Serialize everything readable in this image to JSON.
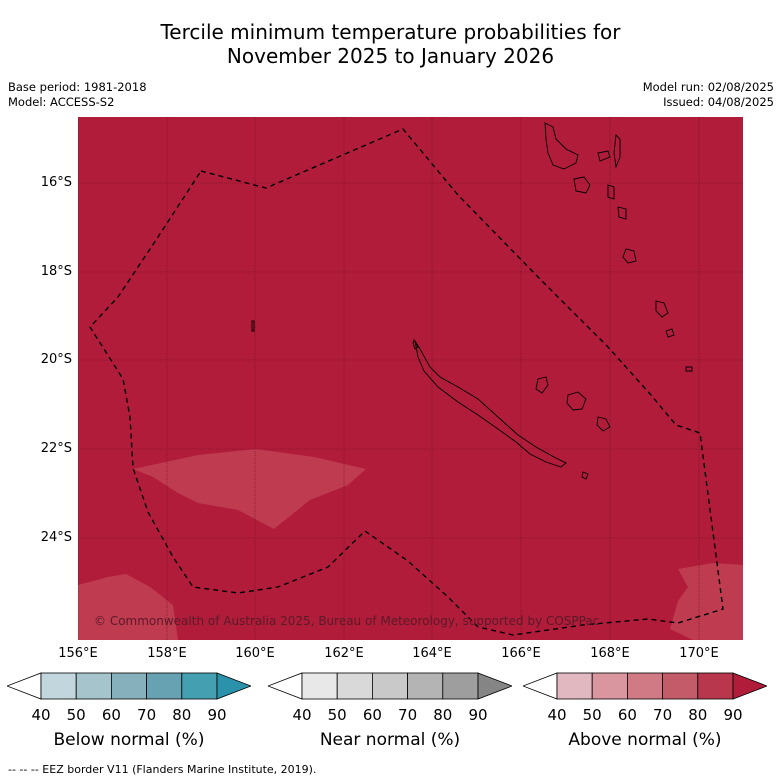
{
  "title_line1": "Tercile minimum temperature probabilities for",
  "title_line2": "November 2025 to January 2026",
  "base_period": "Base period: 1981-2018",
  "model": "Model: ACCESS-S2",
  "model_run": "Model run: 02/08/2025",
  "issued": "Issued: 04/08/2025",
  "copyright": "© Commonwealth of Australia 2025, Bureau of Meteorology, supported by COSPPac",
  "lat_labels": [
    "16°S",
    "18°S",
    "20°S",
    "22°S",
    "24°S"
  ],
  "lon_labels": [
    "156°E",
    "158°E",
    "160°E",
    "162°E",
    "164°E",
    "166°E",
    "168°E",
    "170°E"
  ],
  "legend": {
    "ticks": [
      "40",
      "50",
      "60",
      "70",
      "80",
      "90"
    ],
    "below": {
      "title": "Below normal (%)",
      "colors": [
        "#ffffff",
        "#c2d6dd",
        "#a5c4cb",
        "#86b0bb",
        "#66a2b1",
        "#449fb0",
        "#2a92aa"
      ]
    },
    "near": {
      "title": "Near normal (%)",
      "colors": [
        "#ffffff",
        "#e8e8e8",
        "#d9d9d9",
        "#c9c9c9",
        "#b4b4b4",
        "#9e9e9e",
        "#858585"
      ]
    },
    "above": {
      "title": "Above normal (%)",
      "colors": [
        "#ffffff",
        "#e2b8c0",
        "#d9969e",
        "#cf7a84",
        "#c45b69",
        "#b8374c",
        "#b01c3a"
      ]
    }
  },
  "footer": "--  --  -- EEZ border V11 (Flanders Marine Institute, 2019).",
  "map": {
    "dominant_category": "Above normal",
    "dominant_color": "#b01c3a",
    "lighter_color": "#bf3b50"
  }
}
